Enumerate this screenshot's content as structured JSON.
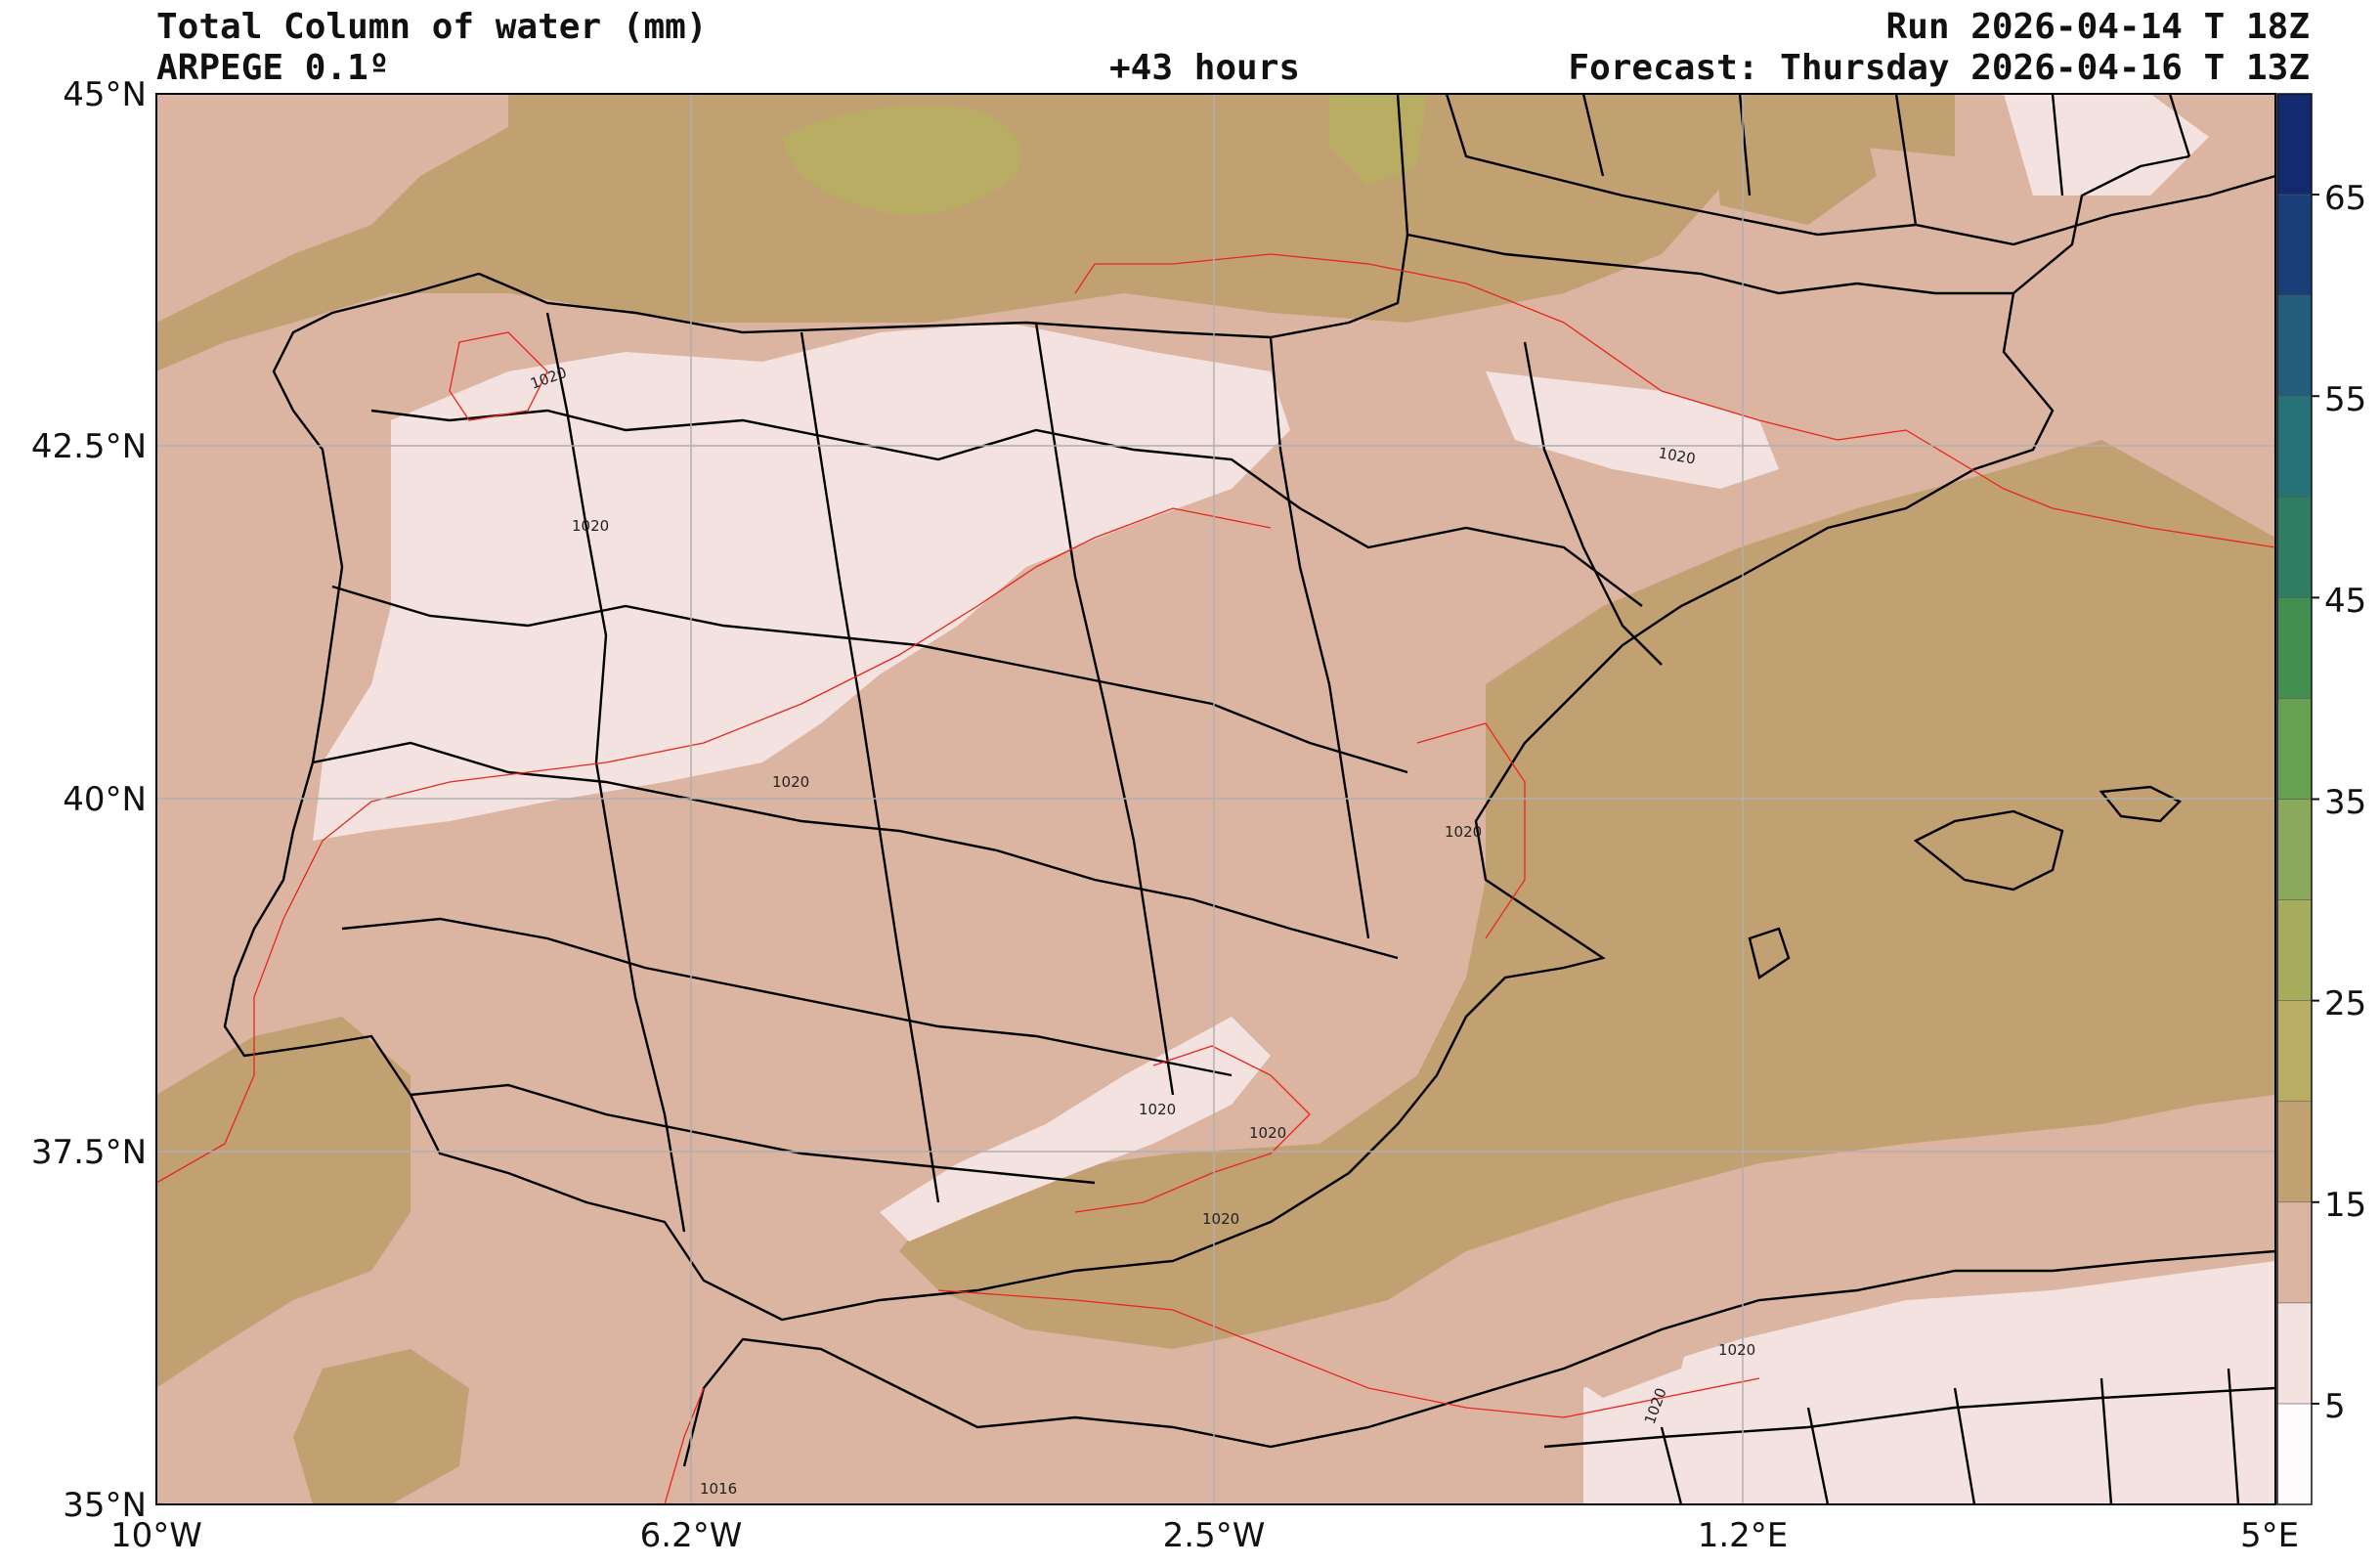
{
  "header": {
    "title": "Total Column of water (mm)",
    "model": "ARPEGE 0.1º",
    "lead": "+43 hours",
    "run": "Run 2026-04-14 T 18Z",
    "forecast": "Forecast: Thursday 2026-04-16 T 13Z"
  },
  "axes": {
    "lat_ticks": [
      "45°N",
      "42.5°N",
      "40°N",
      "37.5°N",
      "35°N"
    ],
    "lon_ticks": [
      "10°W",
      "6.2°W",
      "2.5°W",
      "1.2°E",
      "5°E"
    ]
  },
  "colorbar": {
    "tick_labels": [
      "5",
      "15",
      "25",
      "35",
      "45",
      "55",
      "65"
    ],
    "levels": [
      {
        "value": 0,
        "color": "#fdfbfb"
      },
      {
        "value": 5,
        "color": "#f3e2df"
      },
      {
        "value": 10,
        "color": "#dcb5a2"
      },
      {
        "value": 15,
        "color": "#c1a172"
      },
      {
        "value": 20,
        "color": "#b8ad62"
      },
      {
        "value": 25,
        "color": "#a5ad5c"
      },
      {
        "value": 30,
        "color": "#8ba95c"
      },
      {
        "value": 35,
        "color": "#66a053"
      },
      {
        "value": 40,
        "color": "#428f50"
      },
      {
        "value": 45,
        "color": "#2f7e63"
      },
      {
        "value": 50,
        "color": "#277276"
      },
      {
        "value": 55,
        "color": "#225d79"
      },
      {
        "value": 60,
        "color": "#1a3f78"
      },
      {
        "value": 65,
        "color": "#132a6e"
      },
      {
        "value": 70,
        "color": "#000000"
      }
    ]
  },
  "isobars": {
    "color": "#e8261c",
    "labels": [
      "1020",
      "1020",
      "1020",
      "1020",
      "1020",
      "1020",
      "1020",
      "1020",
      "1020",
      "1020",
      "1016"
    ]
  },
  "colors": {
    "sea_fill": "#c1a172",
    "land_fill": "#dcb5a2",
    "dry_fill": "#f3e2df",
    "moist_fill": "#b8ad62",
    "border": "#000000",
    "grid": "#b0b0b0"
  }
}
